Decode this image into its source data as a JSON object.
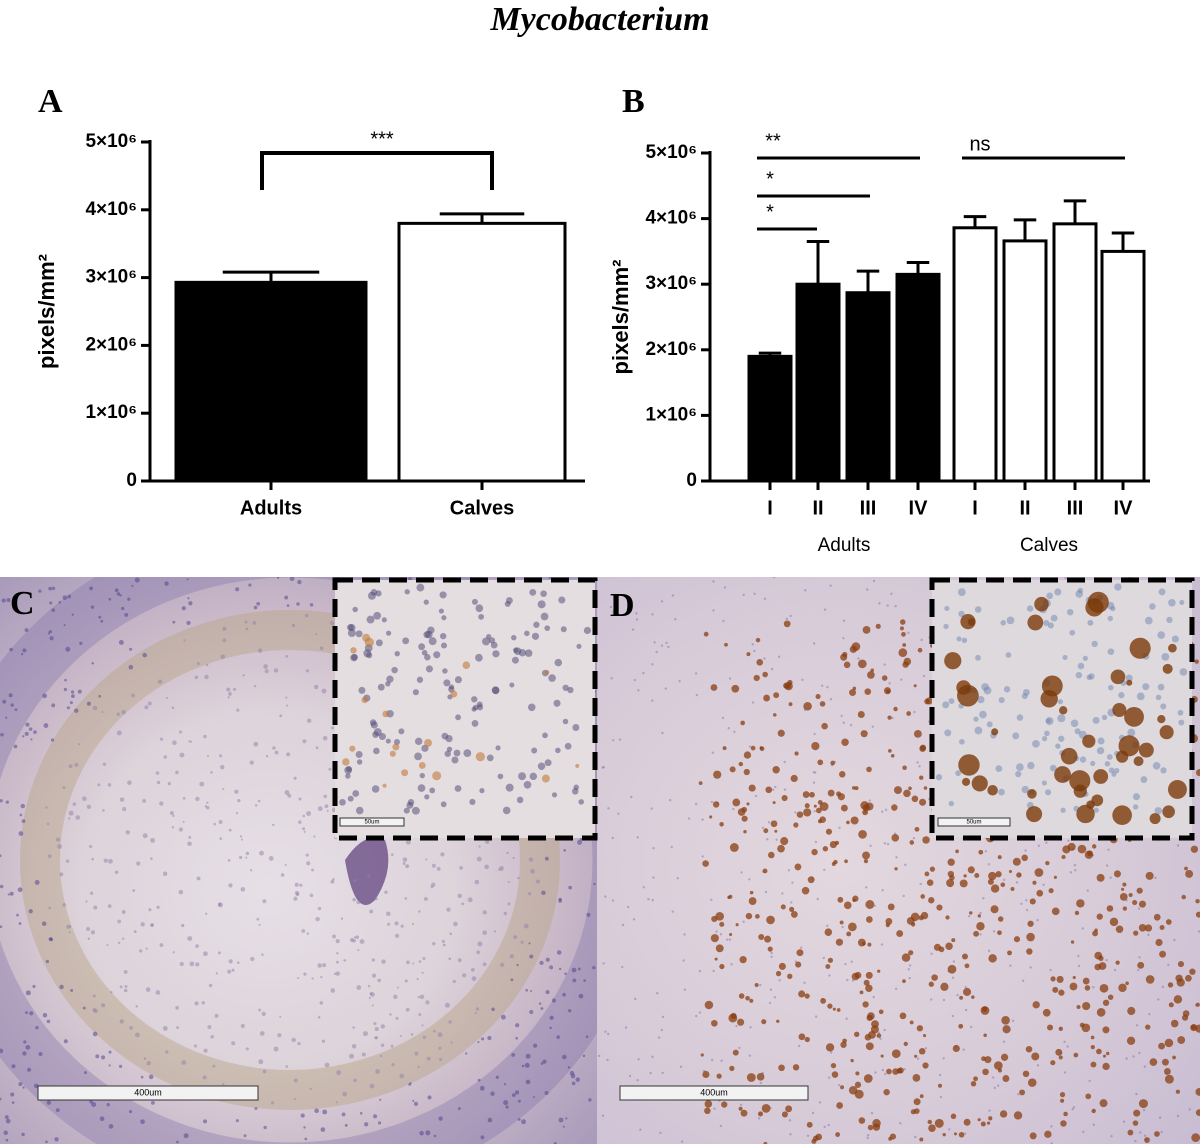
{
  "title": "Mycobacterium",
  "chart_data": [
    {
      "type": "bar",
      "panel": "A",
      "categories": [
        "Adults",
        "Calves"
      ],
      "values": [
        2930000,
        3800000
      ],
      "errors": [
        150000,
        140000
      ],
      "colors": [
        "#000000",
        "#ffffff"
      ],
      "ylabel": "pixels/mm²",
      "ylim": [
        0,
        5000000
      ],
      "yticks": [
        0,
        {
          "value": 1000000,
          "label": "1×10⁶"
        },
        {
          "value": 2000000,
          "label": "2×10⁶"
        },
        {
          "value": 3000000,
          "label": "3×10⁶"
        },
        {
          "value": 4000000,
          "label": "4×10⁶"
        },
        {
          "value": 5000000,
          "label": "5×10⁶"
        }
      ],
      "annotations": [
        "***"
      ]
    },
    {
      "type": "bar",
      "panel": "B",
      "categories": [
        "I",
        "II",
        "III",
        "IV",
        "I",
        "II",
        "III",
        "IV"
      ],
      "groups": [
        "Adults",
        "Calves"
      ],
      "values": [
        1900000,
        3000000,
        2870000,
        3150000,
        3860000,
        3660000,
        3920000,
        3500000
      ],
      "errors": [
        50000,
        650000,
        330000,
        180000,
        170000,
        320000,
        350000,
        280000
      ],
      "colors": [
        "#000000",
        "#000000",
        "#000000",
        "#000000",
        "#ffffff",
        "#ffffff",
        "#ffffff",
        "#ffffff"
      ],
      "ylabel": "pixels/mm²",
      "ylim": [
        0,
        5000000
      ],
      "yticks": [
        0,
        {
          "value": 1000000,
          "label": "1×10⁶"
        },
        {
          "value": 2000000,
          "label": "2×10⁶"
        },
        {
          "value": 3000000,
          "label": "3×10⁶"
        },
        {
          "value": 4000000,
          "label": "4×10⁶"
        },
        {
          "value": 5000000,
          "label": "5×10⁶"
        }
      ],
      "annotations": [
        "**",
        "*",
        "*",
        "ns"
      ]
    }
  ],
  "figures": [
    {
      "panel": "C",
      "scale_bar": "400um",
      "inset_scale_bar": "50um"
    },
    {
      "panel": "D",
      "scale_bar": "400um",
      "inset_scale_bar": "50um"
    }
  ]
}
